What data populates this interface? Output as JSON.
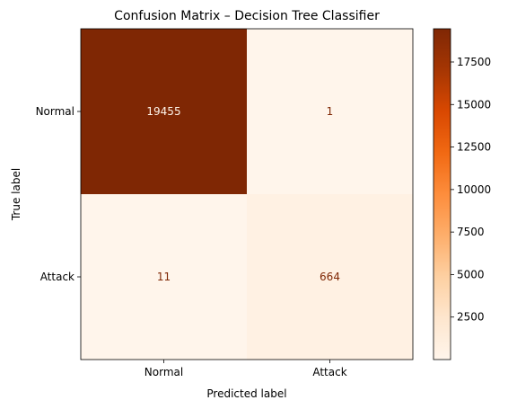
{
  "chart_data": {
    "type": "heatmap",
    "title": "Confusion Matrix – Decision Tree Classifier",
    "xlabel": "Predicted label",
    "ylabel": "True label",
    "x_categories": [
      "Normal",
      "Attack"
    ],
    "y_categories": [
      "Normal",
      "Attack"
    ],
    "values": [
      [
        19455,
        1
      ],
      [
        11,
        664
      ]
    ],
    "value_labels": [
      [
        "19455",
        "1"
      ],
      [
        "11",
        "664"
      ]
    ],
    "colormap": "Oranges",
    "colorbar": {
      "range": [
        1,
        19455
      ],
      "ticks": [
        2500,
        5000,
        7500,
        10000,
        12500,
        15000,
        17500
      ],
      "tick_labels": [
        "2500",
        "5000",
        "7500",
        "10000",
        "12500",
        "15000",
        "17500"
      ]
    },
    "colors": {
      "low": "#fff5eb",
      "high": "#7f2704",
      "text_on_dark": "#fff5eb",
      "text_on_light": "#7f2704"
    }
  }
}
